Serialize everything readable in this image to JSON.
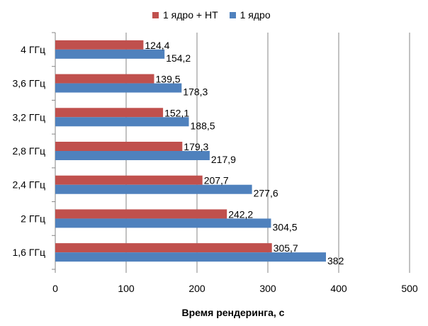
{
  "chart_data": {
    "type": "bar",
    "orientation": "horizontal",
    "categories": [
      "1,6 ГГц",
      "2 ГГц",
      "2,4 ГГц",
      "2,8 ГГц",
      "3,2 ГГц",
      "3,6 ГГц",
      "4 ГГц"
    ],
    "series": [
      {
        "name": "1 ядро + HT",
        "color": "#c0504d",
        "values": [
          305.7,
          242.2,
          207.7,
          179.3,
          152.1,
          139.5,
          124.4
        ],
        "labels": [
          "305,7",
          "242,2",
          "207,7",
          "179,3",
          "152,1",
          "139,5",
          "124,4"
        ]
      },
      {
        "name": "1 ядро",
        "color": "#4f81bd",
        "values": [
          382,
          304.5,
          277.6,
          217.9,
          188.5,
          178.3,
          154.2
        ],
        "labels": [
          "382",
          "304,5",
          "277,6",
          "217,9",
          "188,5",
          "178,3",
          "154,2"
        ]
      }
    ],
    "xlabel": "Время рендеринга, с",
    "ylabel": "",
    "xlim": [
      0,
      500
    ],
    "xticks": [
      "0",
      "100",
      "200",
      "300",
      "400",
      "500"
    ],
    "grid": true,
    "legend": "top"
  }
}
